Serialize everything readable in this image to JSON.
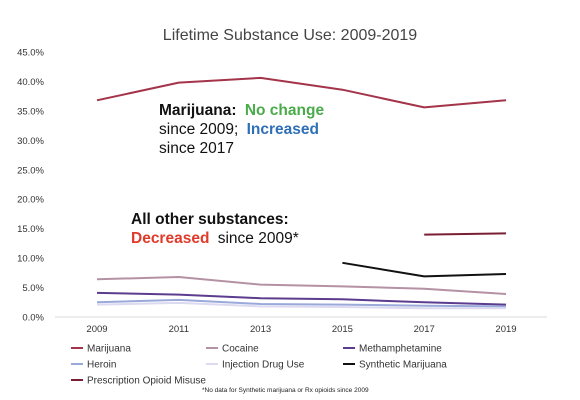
{
  "chart_data": {
    "type": "line",
    "title": "Lifetime Substance Use: 2009-2019",
    "x": [
      "2009",
      "2011",
      "2013",
      "2015",
      "2017",
      "2019"
    ],
    "ylim": [
      0,
      45
    ],
    "y_ticks": [
      "0.0%",
      "5.0%",
      "10.0%",
      "15.0%",
      "20.0%",
      "25.0%",
      "30.0%",
      "35.0%",
      "40.0%",
      "45.0%"
    ],
    "grid": false,
    "legend_position": "bottom",
    "series": [
      {
        "name": "Marijuana",
        "color": "#a3344a",
        "values": [
          36.8,
          39.8,
          40.6,
          38.6,
          35.6,
          36.8
        ]
      },
      {
        "name": "Cocaine",
        "color": "#b591a4",
        "values": [
          6.4,
          6.8,
          5.5,
          5.2,
          4.8,
          3.9
        ]
      },
      {
        "name": "Methamphetamine",
        "color": "#5b3c8e",
        "values": [
          4.1,
          3.8,
          3.2,
          3.0,
          2.5,
          2.1
        ]
      },
      {
        "name": "Heroin",
        "color": "#9aa9da",
        "values": [
          2.5,
          2.9,
          2.2,
          2.1,
          1.9,
          1.8
        ]
      },
      {
        "name": "Injection Drug Use",
        "color": "#dbdaf0",
        "values": [
          2.1,
          2.4,
          1.8,
          1.7,
          1.5,
          1.5
        ]
      },
      {
        "name": "Synthetic Marijuana",
        "color": "#111111",
        "values": [
          null,
          null,
          null,
          9.2,
          6.9,
          7.3
        ]
      },
      {
        "name": "Prescription Opioid Misuse",
        "color": "#7a1f33",
        "values": [
          null,
          null,
          null,
          null,
          14.0,
          14.2
        ]
      }
    ]
  },
  "annotations": {
    "marijuana_title": "Marijuana:",
    "no_change": "No change",
    "since_2009": "since 2009;",
    "increased": "Increased",
    "since_2017": "since 2017",
    "other_title": "All other substances:",
    "decreased": "Decreased",
    "since_2009_star": "since 2009*"
  },
  "colors": {
    "green": "#4aab4a",
    "blue": "#2f6fb5",
    "red": "#e03a2b",
    "black": "#111111"
  },
  "footnote": "*No data for Synthetic marijuana or Rx opioids since 2009"
}
